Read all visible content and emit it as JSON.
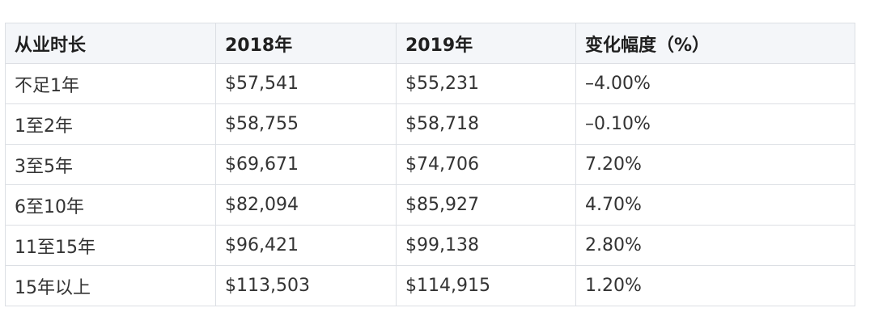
{
  "table": {
    "headers": [
      "从业时长",
      "2018年",
      "2019年",
      "变化幅度（%）"
    ],
    "rows": [
      [
        "不足1年",
        "$57,541",
        "$55,231",
        "–4.00%"
      ],
      [
        "1至2年",
        "$58,755",
        "$58,718",
        "–0.10%"
      ],
      [
        "3至5年",
        "$69,671",
        "$74,706",
        "7.20%"
      ],
      [
        "6至10年",
        "$82,094",
        "$85,927",
        "4.70%"
      ],
      [
        "11至15年",
        "$96,421",
        "$99,138",
        "2.80%"
      ],
      [
        "15年以上",
        "$113,503",
        "$114,915",
        "1.20%"
      ]
    ]
  },
  "colors": {
    "header_background": "#f4f6f9",
    "border": "#dcdfe4",
    "text": "#333333"
  }
}
